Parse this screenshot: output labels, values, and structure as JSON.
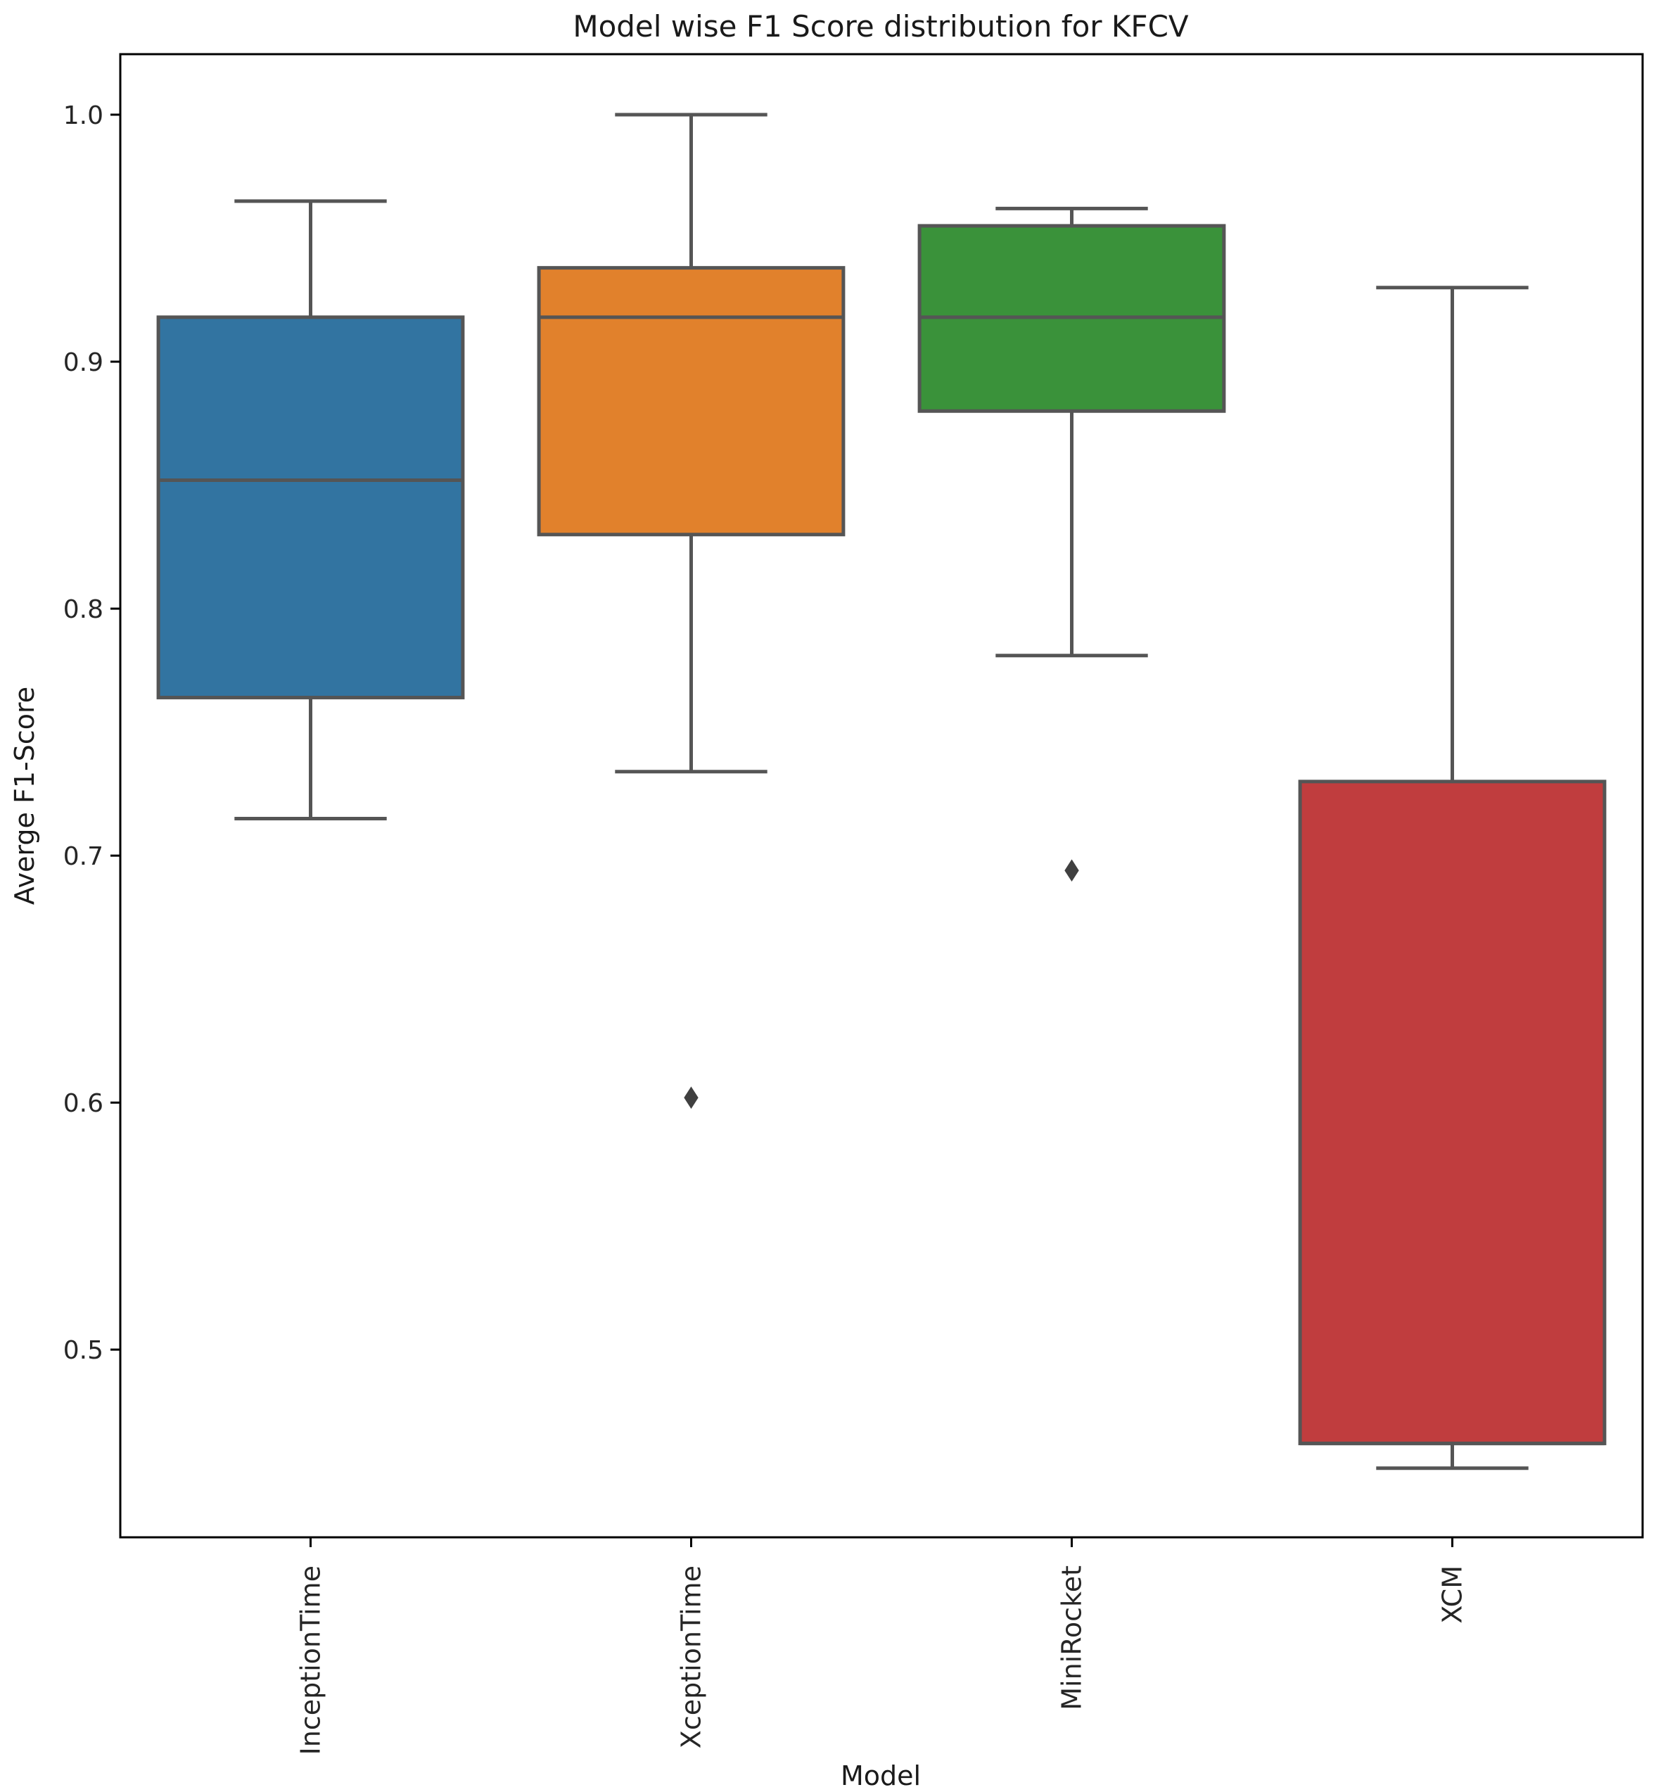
{
  "chart_data": {
    "type": "boxplot",
    "title": "Model wise F1 Score distribution for KFCV",
    "xlabel": "Model",
    "ylabel": "Averge F1-Score",
    "ylim": [
      0.424,
      1.0245
    ],
    "yticks": [
      0.5,
      0.6,
      0.7,
      0.8,
      0.9,
      1.0
    ],
    "ytick_labels": [
      "0.5",
      "0.6",
      "0.7",
      "0.8",
      "0.9",
      "1.0"
    ],
    "grid": false,
    "series": [
      {
        "name": "InceptionTime",
        "color": "#3274a1",
        "whisker_low": 0.715,
        "q1": 0.764,
        "median": 0.852,
        "q3": 0.918,
        "whisker_high": 0.965,
        "outliers": []
      },
      {
        "name": "XceptionTime",
        "color": "#e1812c",
        "whisker_low": 0.734,
        "q1": 0.83,
        "median": 0.918,
        "q3": 0.938,
        "whisker_high": 1.0,
        "outliers": [
          0.602
        ]
      },
      {
        "name": "MiniRocket",
        "color": "#3a923a",
        "whisker_low": 0.781,
        "q1": 0.88,
        "median": 0.918,
        "q3": 0.955,
        "whisker_high": 0.962,
        "outliers": [
          0.694
        ]
      },
      {
        "name": "XCM",
        "color": "#c03d3e",
        "whisker_low": 0.452,
        "q1": 0.462,
        "median": 0.462,
        "q3": 0.73,
        "whisker_high": 0.93,
        "outliers": []
      }
    ]
  }
}
